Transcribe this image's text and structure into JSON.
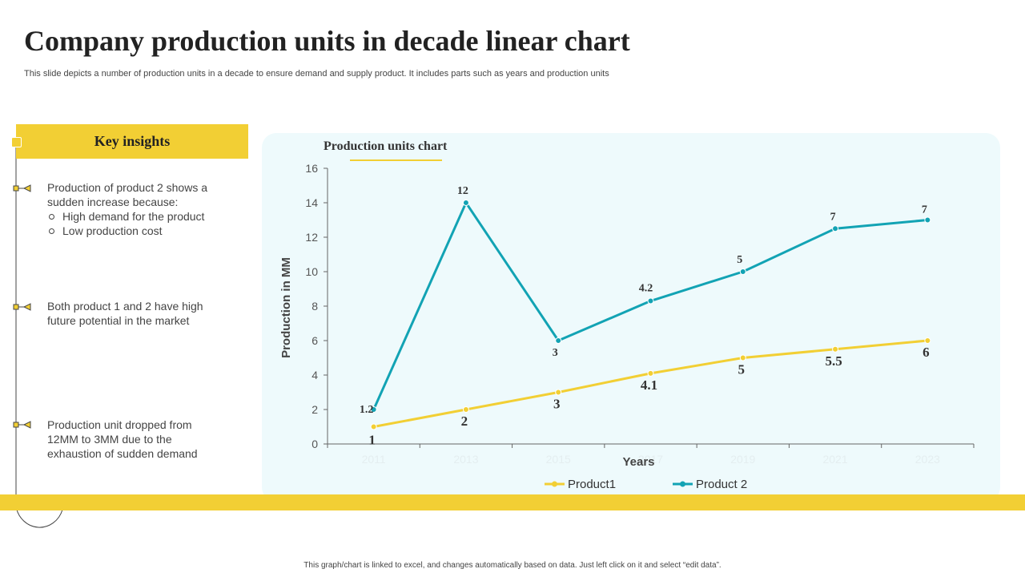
{
  "page": {
    "title": "Company production units in decade linear chart",
    "subtitle": "This slide depicts a number of production units in a decade to ensure demand and supply product. It includes parts such as years and production units",
    "footer": "This graph/chart is linked to excel, and changes automatically based on data. Just left click on it and select “edit data”."
  },
  "insights": {
    "header": "Key insights",
    "items": [
      {
        "text": "Production of product 2 shows a sudden increase because:",
        "bullets": [
          "High demand for the product",
          "Low production cost"
        ]
      },
      {
        "text": "Both product 1 and 2 have high future potential in the market"
      },
      {
        "text": "Production unit dropped from 12MM  to 3MM due to the exhaustion of sudden demand"
      }
    ]
  },
  "colors": {
    "accent": "#f2cf34",
    "product1": "#f2cf34",
    "product2": "#12a3b4",
    "panel": "#eefafc"
  },
  "chart_data": {
    "type": "line",
    "title": "Production units chart",
    "xlabel": "Years",
    "ylabel": "Production  in MM",
    "categories": [
      "2011",
      "2013",
      "2015",
      "2017",
      "2019",
      "2021",
      "2023"
    ],
    "ylim": [
      0,
      16
    ],
    "yticks": [
      0,
      2,
      4,
      6,
      8,
      10,
      12,
      14,
      16
    ],
    "grid": false,
    "legend": "bottom",
    "series": [
      {
        "name": "Product1",
        "values": [
          1,
          2,
          3,
          4.1,
          5,
          5.5,
          6
        ],
        "labels": [
          "1",
          "2",
          "3",
          "4.1",
          "5",
          "5.5",
          "6"
        ]
      },
      {
        "name": "Product 2",
        "values": [
          2,
          14,
          6,
          8.3,
          10,
          12.5,
          13
        ],
        "labels": [
          "1.2",
          "12",
          "3",
          "4.2",
          "5",
          "7",
          "7"
        ]
      }
    ]
  }
}
